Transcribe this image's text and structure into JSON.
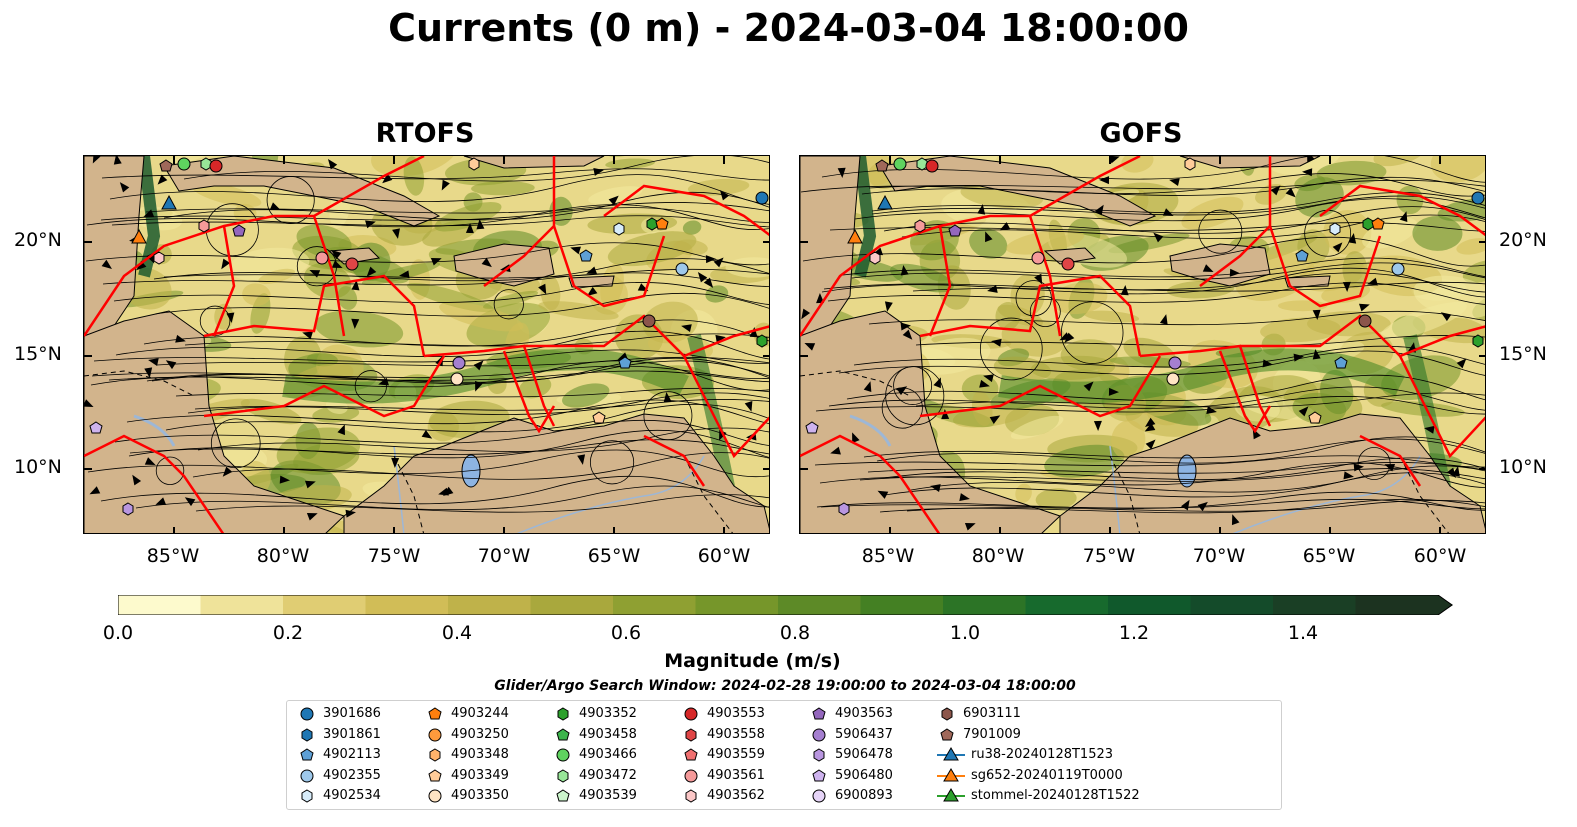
{
  "title": "Currents (0 m) - 2024-03-04 18:00:00",
  "panels": [
    {
      "title": "RTOFS"
    },
    {
      "title": "GOFS"
    }
  ],
  "axes": {
    "lat_labels": [
      "20°N",
      "15°N",
      "10°N"
    ],
    "lon_labels": [
      "85°W",
      "80°W",
      "75°W",
      "70°W",
      "65°W",
      "60°W"
    ]
  },
  "colorbar": {
    "ticks": [
      "0.0",
      "0.2",
      "0.4",
      "0.6",
      "0.8",
      "1.0",
      "1.2",
      "1.4"
    ],
    "label": "Magnitude (m/s)",
    "colors": [
      "#fdfacd",
      "#efe39a",
      "#e0cd73",
      "#d1bd57",
      "#bfb24a",
      "#a9a83d",
      "#8fa032",
      "#76962a",
      "#5d8a27",
      "#448023",
      "#2c7426",
      "#176a2d",
      "#10592c",
      "#144b2a",
      "#1a3f25",
      "#1c3320"
    ],
    "range": [
      0,
      1.6
    ]
  },
  "search_window": "Glider/Argo Search Window: 2024-02-28 19:00:00 to 2024-03-04 18:00:00",
  "legend": [
    {
      "label": "3901686",
      "shape": "circle",
      "color": "#1f77b4"
    },
    {
      "label": "3901861",
      "shape": "hexagon",
      "color": "#1f77b4"
    },
    {
      "label": "4902113",
      "shape": "pentagon",
      "color": "#5ea0d6"
    },
    {
      "label": "4902355",
      "shape": "circle",
      "color": "#9ec8ea"
    },
    {
      "label": "4902534",
      "shape": "hexagon",
      "color": "#d7ecfa"
    },
    {
      "label": "4903244",
      "shape": "pentagon",
      "color": "#ff7f0e"
    },
    {
      "label": "4903250",
      "shape": "circle",
      "color": "#ff9a3c"
    },
    {
      "label": "4903348",
      "shape": "hexagon",
      "color": "#ffb36b"
    },
    {
      "label": "4903349",
      "shape": "pentagon",
      "color": "#ffcc99"
    },
    {
      "label": "4903350",
      "shape": "circle",
      "color": "#ffe4c4"
    },
    {
      "label": "4903352",
      "shape": "hexagon",
      "color": "#2ca02c"
    },
    {
      "label": "4903458",
      "shape": "pentagon",
      "color": "#3cb44b"
    },
    {
      "label": "4903466",
      "shape": "circle",
      "color": "#5fd35f"
    },
    {
      "label": "4903472",
      "shape": "hexagon",
      "color": "#98e698"
    },
    {
      "label": "4903539",
      "shape": "pentagon",
      "color": "#ccf5cc"
    },
    {
      "label": "4903553",
      "shape": "circle",
      "color": "#d62728"
    },
    {
      "label": "4903558",
      "shape": "hexagon",
      "color": "#e04546"
    },
    {
      "label": "4903559",
      "shape": "pentagon",
      "color": "#f07070"
    },
    {
      "label": "4903561",
      "shape": "circle",
      "color": "#f59a9a"
    },
    {
      "label": "4903562",
      "shape": "hexagon",
      "color": "#fbc7c7"
    },
    {
      "label": "4903563",
      "shape": "pentagon",
      "color": "#9467bd"
    },
    {
      "label": "5906437",
      "shape": "circle",
      "color": "#a57fd0"
    },
    {
      "label": "5906478",
      "shape": "hexagon",
      "color": "#b996e0"
    },
    {
      "label": "5906480",
      "shape": "pentagon",
      "color": "#ceb3ee"
    },
    {
      "label": "6900893",
      "shape": "circle",
      "color": "#e6d4f7"
    },
    {
      "label": "6903111",
      "shape": "hexagon",
      "color": "#8c564b"
    },
    {
      "label": "7901009",
      "shape": "pentagon",
      "color": "#a0685a"
    },
    {
      "label": "ru38-20240128T1523",
      "shape": "triangle-line",
      "color": "#1f77b4"
    },
    {
      "label": "sg652-20240119T0000",
      "shape": "triangle-line",
      "color": "#ff7f0e"
    },
    {
      "label": "stommel-20240128T1522",
      "shape": "triangle-line",
      "color": "#2ca02c"
    }
  ]
}
